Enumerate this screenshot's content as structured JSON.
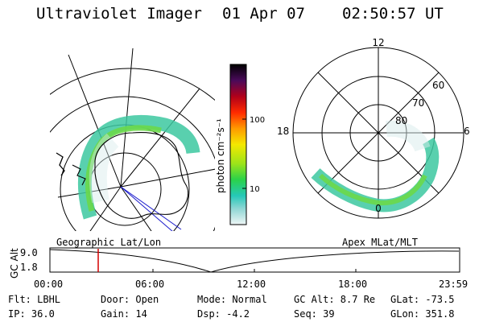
{
  "header": {
    "title": "Ultraviolet Imager",
    "date": "01 Apr 07",
    "time": "02:50:57 UT"
  },
  "colorbar": {
    "label": "photon cm⁻²s⁻¹",
    "ticks": [
      "100",
      "10"
    ]
  },
  "polar": {
    "mlt_labels": {
      "top": "12",
      "left": "18",
      "right": "6",
      "bottom": "0"
    },
    "lat_labels": [
      "60",
      "70",
      "80"
    ]
  },
  "timeline": {
    "left_label": "Geographic Lat/Lon",
    "right_label": "Apex MLat/MLT",
    "axis_title": "GC Alt",
    "y_ticks": [
      "9.0",
      "1.8"
    ],
    "x_ticks": [
      "00:00",
      "06:00",
      "12:00",
      "18:00",
      "23:59"
    ],
    "marker_time": "02:50:57",
    "marker_color": "#d40000"
  },
  "info": {
    "flt": "Flt: LBHL",
    "door": "Door: Open",
    "mode": "Mode: Normal",
    "gcalt": "GC Alt: 8.7 Re",
    "glat": "GLat: -73.5",
    "ip": "IP: 36.0",
    "gain": "Gain: 14",
    "dsp": "Dsp:   -4.2",
    "seq": "Seq: 39",
    "glon": "GLon: 351.8"
  }
}
